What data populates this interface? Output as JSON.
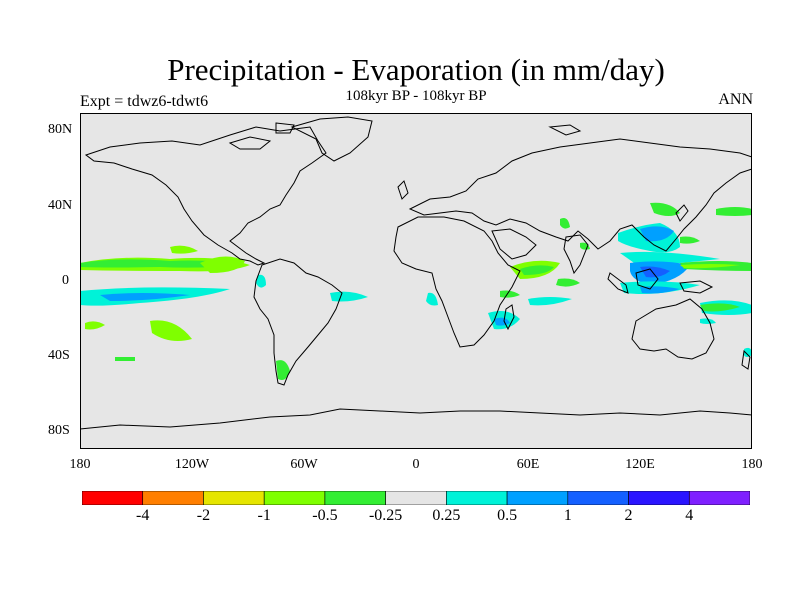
{
  "title": "Precipitation - Evaporation (in mm/day)",
  "subtitle": "108kyr BP - 108kyr BP",
  "left_label": "Expt = tdwz6-tdwt6",
  "right_label": "ANN",
  "lat_ticks": [
    "80N",
    "40N",
    "0",
    "40S",
    "80S"
  ],
  "lon_ticks": [
    "180",
    "120W",
    "60W",
    "0",
    "60E",
    "120E",
    "180"
  ],
  "colorbar": {
    "colors": [
      "#ff0000",
      "#ff7f00",
      "#e5e500",
      "#7fff00",
      "#33ee33",
      "#e5e5e5",
      "#00f2d8",
      "#00a0ff",
      "#1460ff",
      "#2a14ff",
      "#7f20ff"
    ],
    "labels": [
      "-4",
      "-2",
      "-1",
      "-0.5",
      "-0.25",
      "0.25",
      "0.5",
      "1",
      "2",
      "4"
    ]
  },
  "colors": {
    "ocean": "#e6e6e6",
    "coast": "#000000"
  }
}
